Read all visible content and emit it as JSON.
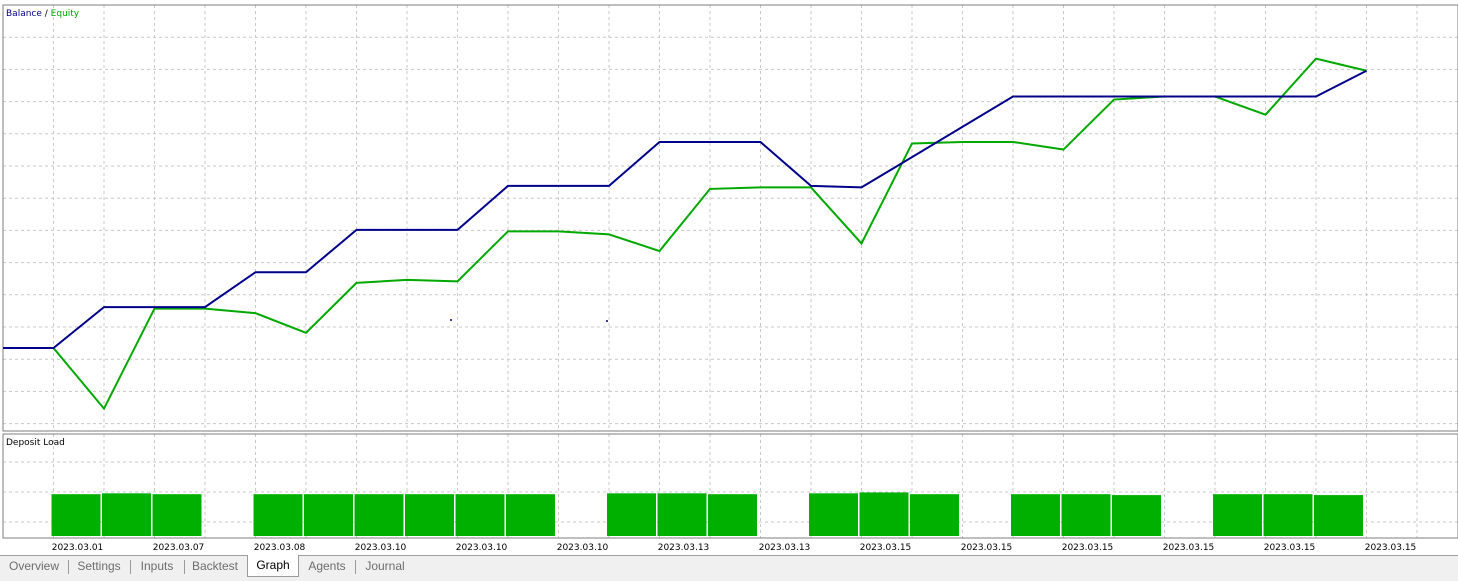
{
  "colors": {
    "balance": "#00008b",
    "equity": "#00a800",
    "bar": "#00b000",
    "grid": "#c8c8c8",
    "frame": "#7f7f7f"
  },
  "chart_data": [
    {
      "type": "line",
      "title": "Balance / Equity",
      "legend": {
        "placement": "top-left",
        "items": [
          "Balance",
          "Equity"
        ],
        "separator": " / "
      },
      "grid": true,
      "x_count": 28,
      "series": [
        {
          "name": "Balance",
          "values": [
            0.0,
            0.0,
            0.135,
            0.135,
            0.135,
            0.25,
            0.25,
            0.39,
            0.39,
            0.39,
            0.535,
            0.535,
            0.535,
            0.68,
            0.68,
            0.68,
            0.535,
            0.535,
            0.53,
            0.83,
            0.83,
            0.83,
            0.83,
            0.83,
            0.83,
            0.83,
            0.915
          ]
        },
        {
          "name": "Equity",
          "values": [
            0.0,
            0.0,
            -0.2,
            0.13,
            0.13,
            0.115,
            0.05,
            0.215,
            0.225,
            0.22,
            0.385,
            0.385,
            0.375,
            0.32,
            0.525,
            0.53,
            0.53,
            0.345,
            0.675,
            0.68,
            0.68,
            0.655,
            0.82,
            0.83,
            0.83,
            0.77,
            0.955,
            0.915
          ]
        }
      ],
      "x_indices": {
        "Balance": [
          0,
          1,
          2,
          3,
          4,
          5,
          6,
          7,
          8,
          9,
          10,
          11,
          12,
          13,
          14,
          15,
          16,
          16,
          17,
          20,
          21,
          22,
          23,
          24,
          25,
          26,
          27
        ],
        "Equity": [
          0,
          1,
          2,
          3,
          4,
          5,
          6,
          7,
          8,
          9,
          10,
          11,
          12,
          13,
          14,
          15,
          16,
          17,
          18,
          19,
          20,
          21,
          22,
          23,
          24,
          25,
          26,
          27
        ]
      }
    },
    {
      "type": "bar",
      "title": "Deposit Load",
      "categories": [
        "2023.03.01",
        "2023.03.07",
        "2023.03.08",
        "2023.03.10",
        "2023.03.10",
        "2023.03.10",
        "2023.03.13",
        "2023.03.13",
        "2023.03.15",
        "2023.03.15",
        "2023.03.15",
        "2023.03.15",
        "2023.03.15",
        "2023.03.15"
      ],
      "bar_values": [
        0.95,
        0.97,
        0.95,
        0,
        0.95,
        0.95,
        0.95,
        0.95,
        0.95,
        0.95,
        0,
        0.97,
        0.97,
        0.95,
        0,
        0.97,
        0.99,
        0.95,
        0,
        0.95,
        0.95,
        0.93,
        0,
        0.95,
        0.95,
        0.93,
        0,
        0
      ]
    }
  ],
  "tabs": [
    {
      "label": "Overview",
      "active": false
    },
    {
      "label": "Settings",
      "active": false
    },
    {
      "label": "Inputs",
      "active": false
    },
    {
      "label": "Backtest",
      "active": false
    },
    {
      "label": "Graph",
      "active": true
    },
    {
      "label": "Agents",
      "active": false
    },
    {
      "label": "Journal",
      "active": false
    }
  ]
}
